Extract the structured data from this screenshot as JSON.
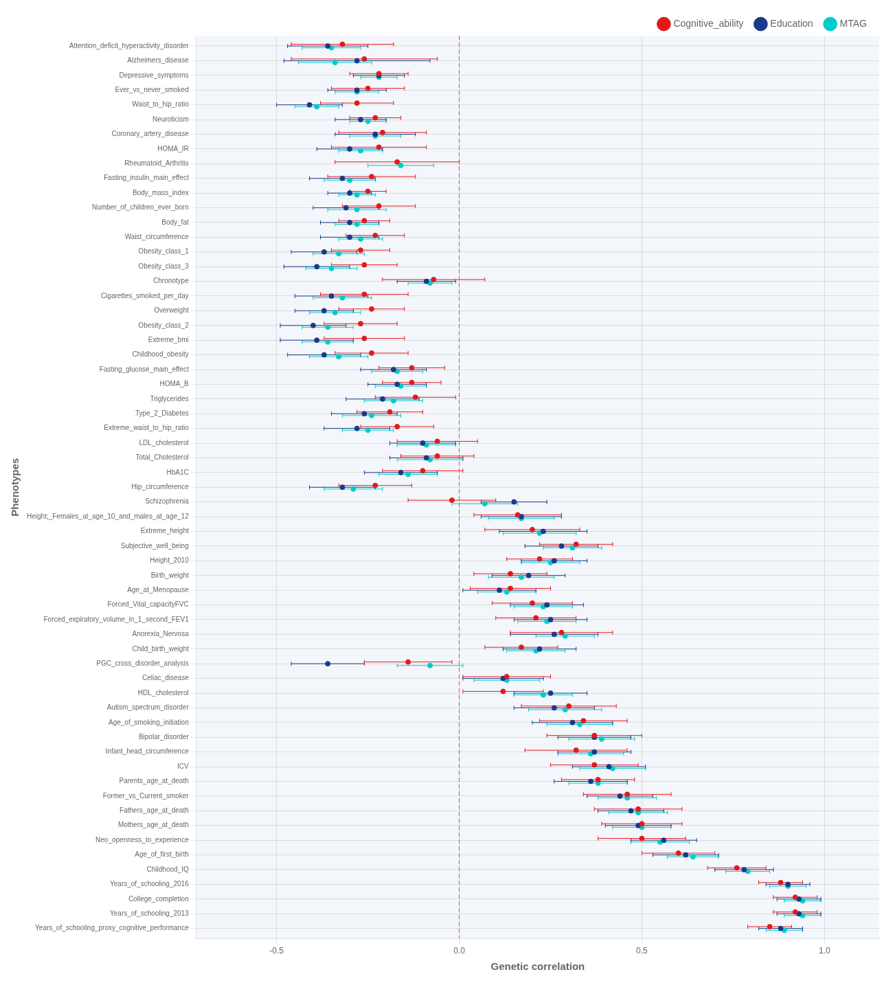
{
  "chart_data": {
    "type": "errorbar",
    "categories": [
      "Attention_deficit_hyperactivity_disorder",
      "Alzheimers_disease",
      "Depressive_symptoms",
      "Ever_vs_never_smoked",
      "Waist_to_hip_ratio",
      "Neuroticism",
      "Coronary_artery_disease",
      "HOMA_IR",
      "Rheumatoid_Arthritis",
      "Fasting_insulin_main_effect",
      "Body_mass_index",
      "Number_of_children_ever_born",
      "Body_fat",
      "Waist_circumference",
      "Obesity_class_1",
      "Obesity_class_3",
      "Chronotype",
      "Cigarettes_smoked_per_day",
      "Overweight",
      "Obesity_class_2",
      "Extreme_bmi",
      "Childhood_obesity",
      "Fasting_glucose_main_effect",
      "HOMA_B",
      "Triglycerides",
      "Type_2_Diabetes",
      "Extreme_waist_to_hip_ratio",
      "LDL_cholesterol",
      "Total_Cholesterol",
      "HbA1C",
      "Hip_circumference",
      "Schizophrenia",
      "Height;_Females_at_age_10_and_males_at_age_12",
      "Extreme_height",
      "Subjective_well_being",
      "Height_2010",
      "Birth_weight",
      "Age_at_Menopause",
      "Forced_Vital_capacityFVC",
      "Forced_expiratory_volume_in_1_second_FEV1",
      "Anorexia_Nervosa",
      "Child_birth_weight",
      "PGC_cross_disorder_analysis",
      "Celiac_disease",
      "HDL_cholesterol",
      "Autism_spectrum_disorder",
      "Age_of_smoking_initiation",
      "Bipolar_disorder",
      "Infant_head_circumference",
      "ICV",
      "Parents_age_at_death",
      "Former_vs_Current_smoker",
      "Fathers_age_at_death",
      "Mothers_age_at_death",
      "Neo_openness_to_experience",
      "Age_of_first_birth",
      "Childhood_IQ",
      "Years_of_schooling_2016",
      "College_completion",
      "Years_of_schooling_2013",
      "Years_of_schooling_proxy_cognitive_performance"
    ],
    "series": [
      {
        "name": "Cognitive_ability",
        "color": "#e31a1c",
        "values": [
          -0.32,
          -0.26,
          -0.22,
          -0.25,
          -0.28,
          -0.23,
          -0.21,
          -0.22,
          -0.17,
          -0.24,
          -0.25,
          -0.22,
          -0.26,
          -0.23,
          -0.27,
          -0.26,
          -0.07,
          -0.26,
          -0.24,
          -0.27,
          -0.26,
          -0.24,
          -0.13,
          -0.13,
          -0.12,
          -0.19,
          -0.17,
          -0.06,
          -0.06,
          -0.1,
          -0.23,
          -0.02,
          0.16,
          0.2,
          0.32,
          0.22,
          0.14,
          0.14,
          0.2,
          0.21,
          0.28,
          0.17,
          -0.14,
          0.13,
          0.12,
          0.3,
          0.34,
          0.37,
          0.32,
          0.37,
          0.38,
          0.46,
          0.49,
          0.5,
          0.5,
          0.6,
          0.76,
          0.88,
          0.92,
          0.92,
          0.85
        ],
        "ci_low": [
          -0.46,
          -0.46,
          -0.3,
          -0.35,
          -0.38,
          -0.3,
          -0.33,
          -0.35,
          -0.34,
          -0.36,
          -0.3,
          -0.32,
          -0.33,
          -0.31,
          -0.35,
          -0.35,
          -0.21,
          -0.38,
          -0.33,
          -0.37,
          -0.37,
          -0.34,
          -0.22,
          -0.21,
          -0.23,
          -0.28,
          -0.27,
          -0.17,
          -0.16,
          -0.21,
          -0.33,
          -0.14,
          0.04,
          0.07,
          0.22,
          0.13,
          0.04,
          0.03,
          0.09,
          0.1,
          0.14,
          0.07,
          -0.26,
          0.01,
          0.01,
          0.17,
          0.22,
          0.24,
          0.18,
          0.25,
          0.28,
          0.34,
          0.37,
          0.39,
          0.38,
          0.5,
          0.68,
          0.82,
          0.86,
          0.86,
          0.79
        ],
        "ci_high": [
          -0.18,
          -0.06,
          -0.14,
          -0.15,
          -0.18,
          -0.16,
          -0.09,
          -0.09,
          0.0,
          -0.12,
          -0.2,
          -0.12,
          -0.19,
          -0.15,
          -0.19,
          -0.17,
          0.07,
          -0.14,
          -0.15,
          -0.17,
          -0.15,
          -0.14,
          -0.04,
          -0.05,
          -0.01,
          -0.1,
          -0.07,
          0.05,
          0.04,
          0.01,
          -0.13,
          0.1,
          0.28,
          0.33,
          0.42,
          0.31,
          0.24,
          0.25,
          0.31,
          0.32,
          0.42,
          0.27,
          -0.02,
          0.25,
          0.23,
          0.43,
          0.46,
          0.5,
          0.46,
          0.49,
          0.48,
          0.58,
          0.61,
          0.61,
          0.62,
          0.7,
          0.84,
          0.94,
          0.98,
          0.98,
          0.91
        ]
      },
      {
        "name": "Education",
        "color": "#1a3a8a",
        "values": [
          -0.36,
          -0.28,
          -0.22,
          -0.28,
          -0.41,
          -0.27,
          -0.23,
          -0.3,
          null,
          -0.32,
          -0.3,
          -0.31,
          -0.3,
          -0.3,
          -0.37,
          -0.39,
          -0.09,
          -0.35,
          -0.37,
          -0.4,
          -0.39,
          -0.37,
          -0.18,
          -0.17,
          -0.21,
          -0.26,
          -0.28,
          -0.1,
          -0.09,
          -0.16,
          -0.32,
          0.15,
          0.17,
          0.23,
          0.28,
          0.26,
          0.19,
          0.11,
          0.24,
          0.25,
          0.26,
          0.22,
          -0.36,
          0.12,
          0.25,
          0.26,
          0.31,
          0.37,
          0.37,
          0.41,
          0.36,
          0.44,
          0.47,
          0.49,
          0.56,
          0.62,
          0.78,
          0.9,
          0.93,
          0.93,
          0.88
        ],
        "ci_low": [
          -0.47,
          -0.48,
          -0.29,
          -0.36,
          -0.5,
          -0.34,
          -0.34,
          -0.39,
          null,
          -0.41,
          -0.36,
          -0.4,
          -0.38,
          -0.38,
          -0.46,
          -0.48,
          -0.17,
          -0.45,
          -0.45,
          -0.49,
          -0.49,
          -0.47,
          -0.27,
          -0.25,
          -0.31,
          -0.35,
          -0.37,
          -0.19,
          -0.19,
          -0.26,
          -0.41,
          0.06,
          0.06,
          0.11,
          0.18,
          0.17,
          0.09,
          0.01,
          0.14,
          0.15,
          0.14,
          0.12,
          -0.46,
          0.01,
          0.15,
          0.15,
          0.2,
          0.27,
          0.27,
          0.31,
          0.26,
          0.35,
          0.38,
          0.4,
          0.47,
          0.53,
          0.7,
          0.84,
          0.87,
          0.87,
          0.82
        ],
        "ci_high": [
          -0.25,
          -0.08,
          -0.15,
          -0.2,
          -0.32,
          -0.2,
          -0.12,
          -0.21,
          null,
          -0.23,
          -0.24,
          -0.22,
          -0.22,
          -0.22,
          -0.28,
          -0.3,
          -0.01,
          -0.25,
          -0.29,
          -0.31,
          -0.29,
          -0.27,
          -0.09,
          -0.09,
          -0.11,
          -0.17,
          -0.19,
          -0.01,
          0.01,
          -0.06,
          -0.23,
          0.24,
          0.28,
          0.35,
          0.38,
          0.35,
          0.29,
          0.21,
          0.34,
          0.35,
          0.38,
          0.32,
          -0.26,
          0.23,
          0.35,
          0.37,
          0.42,
          0.47,
          0.47,
          0.51,
          0.46,
          0.53,
          0.56,
          0.58,
          0.65,
          0.71,
          0.86,
          0.96,
          0.99,
          0.99,
          0.94
        ]
      },
      {
        "name": "MTAG",
        "color": "#00cccc",
        "values": [
          -0.35,
          -0.34,
          -0.22,
          -0.28,
          -0.39,
          -0.25,
          -0.23,
          -0.27,
          -0.16,
          -0.3,
          -0.28,
          -0.28,
          -0.28,
          -0.27,
          -0.33,
          -0.35,
          -0.08,
          -0.32,
          -0.34,
          -0.36,
          -0.36,
          -0.33,
          -0.17,
          -0.16,
          -0.18,
          -0.24,
          -0.25,
          -0.09,
          -0.08,
          -0.14,
          -0.29,
          0.07,
          0.17,
          0.22,
          0.31,
          0.25,
          0.17,
          0.13,
          0.23,
          0.24,
          0.29,
          0.21,
          -0.08,
          0.13,
          0.23,
          0.29,
          0.33,
          0.39,
          0.36,
          0.42,
          0.38,
          0.46,
          0.49,
          0.5,
          0.55,
          0.64,
          0.79,
          0.9,
          0.94,
          0.94,
          0.89
        ],
        "ci_low": [
          -0.43,
          -0.44,
          -0.27,
          -0.34,
          -0.45,
          -0.3,
          -0.3,
          -0.33,
          -0.25,
          -0.37,
          -0.33,
          -0.36,
          -0.34,
          -0.33,
          -0.4,
          -0.42,
          -0.14,
          -0.4,
          -0.41,
          -0.43,
          -0.43,
          -0.41,
          -0.24,
          -0.23,
          -0.26,
          -0.32,
          -0.32,
          -0.17,
          -0.17,
          -0.22,
          -0.37,
          -0.02,
          0.08,
          0.12,
          0.23,
          0.17,
          0.08,
          0.05,
          0.15,
          0.16,
          0.21,
          0.13,
          -0.17,
          0.04,
          0.15,
          0.19,
          0.24,
          0.3,
          0.27,
          0.33,
          0.3,
          0.38,
          0.41,
          0.42,
          0.47,
          0.57,
          0.73,
          0.85,
          0.89,
          0.89,
          0.84
        ],
        "ci_high": [
          -0.27,
          -0.24,
          -0.17,
          -0.22,
          -0.33,
          -0.2,
          -0.16,
          -0.21,
          -0.07,
          -0.23,
          -0.23,
          -0.2,
          -0.22,
          -0.21,
          -0.26,
          -0.28,
          -0.02,
          -0.24,
          -0.27,
          -0.29,
          -0.29,
          -0.25,
          -0.1,
          -0.09,
          -0.1,
          -0.16,
          -0.18,
          -0.01,
          0.01,
          -0.06,
          -0.21,
          0.16,
          0.26,
          0.32,
          0.39,
          0.33,
          0.26,
          0.21,
          0.31,
          0.32,
          0.37,
          0.29,
          0.01,
          0.22,
          0.31,
          0.39,
          0.42,
          0.48,
          0.45,
          0.51,
          0.46,
          0.54,
          0.57,
          0.58,
          0.63,
          0.71,
          0.85,
          0.95,
          0.99,
          0.99,
          0.94
        ]
      }
    ],
    "x_label": "Genetic correlation",
    "y_label": "Phenotypes",
    "xlim": [
      -0.72,
      1.15
    ],
    "xticks": [
      -0.5,
      {
        "value": 0.0,
        "label": "0.0"
      },
      0.5,
      {
        "value": 1.0,
        "label": "1.0"
      }
    ],
    "vline": 0.0,
    "grid": true,
    "legend": "upper right"
  }
}
